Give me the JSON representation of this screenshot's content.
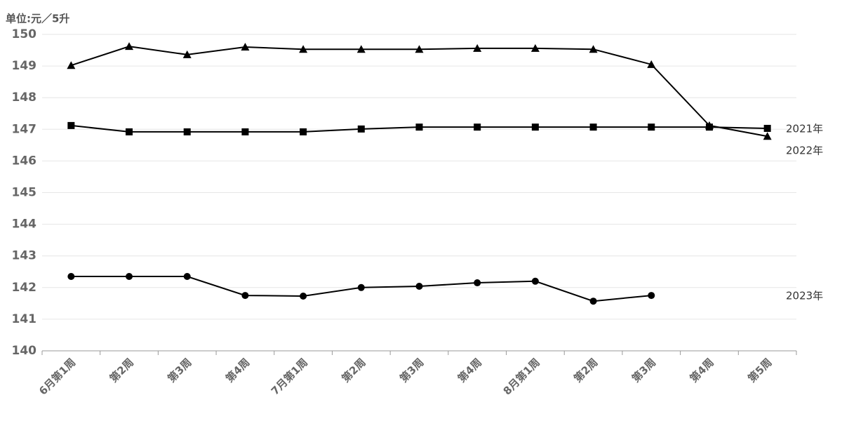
{
  "chart_data": {
    "type": "line",
    "y_label": "单位:元／5升",
    "categories": [
      "6月第1周",
      "第2周",
      "第3周",
      "第4周",
      "7月第1周",
      "第2周",
      "第3周",
      "第4周",
      "8月第1周",
      "第2周",
      "第3周",
      "第4周",
      "第5周"
    ],
    "series": [
      {
        "name": "2021年",
        "color": "#000000",
        "marker": "square",
        "values": [
          147.12,
          146.92,
          146.92,
          146.92,
          146.92,
          147.01,
          147.07,
          147.07,
          147.07,
          147.07,
          147.07,
          147.07,
          147.03
        ]
      },
      {
        "name": "2022年",
        "color": "#000000",
        "marker": "triangle",
        "values": [
          149.02,
          149.62,
          149.36,
          149.6,
          149.53,
          149.53,
          149.53,
          149.56,
          149.56,
          149.53,
          149.05,
          147.12,
          146.78
        ]
      },
      {
        "name": "2023年",
        "color": "#000000",
        "marker": "circle",
        "values": [
          142.35,
          142.35,
          142.35,
          141.75,
          141.73,
          142.0,
          142.04,
          142.15,
          142.2,
          141.57,
          141.75,
          null,
          null
        ]
      }
    ],
    "ylim": [
      140,
      150
    ],
    "yticks": [
      140,
      141,
      142,
      143,
      144,
      145,
      146,
      147,
      148,
      149,
      150
    ],
    "grid": true
  }
}
